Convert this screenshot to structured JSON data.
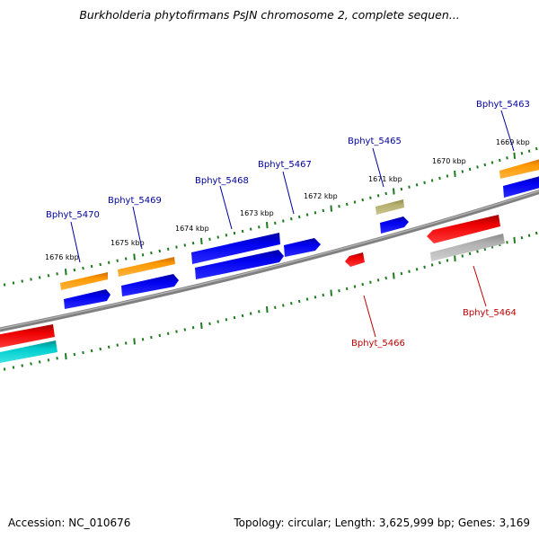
{
  "title": "Burkholderia phytofirmans PsJN chromosome 2, complete sequen...",
  "footer": {
    "accession_label": "Accession:",
    "accession": "NC_010676",
    "topology": "Topology: circular; Length: 3,625,999 bp; Genes: 3,169"
  },
  "colors": {
    "backbone": "#808080",
    "tick": "#1e7a1e",
    "forward_label": "#00009e",
    "reverse_label": "#c00000",
    "orange": "#ff9900",
    "blue": "#0000ee",
    "olive": "#b5b070",
    "red": "#ee0000",
    "cyan": "#00cccc",
    "gray": "#b0b0b0"
  },
  "ticks": [
    "1676 kbp",
    "1675 kbp",
    "1674 kbp",
    "1673 kbp",
    "1672 kbp",
    "1671 kbp",
    "1670 kbp",
    "1669 kbp"
  ],
  "genes": {
    "forward": [
      "Bphyt_5470",
      "Bphyt_5469",
      "Bphyt_5468",
      "Bphyt_5467",
      "Bphyt_5465",
      "Bphyt_5463"
    ],
    "reverse": [
      "Bphyt_5466",
      "Bphyt_5464"
    ]
  }
}
